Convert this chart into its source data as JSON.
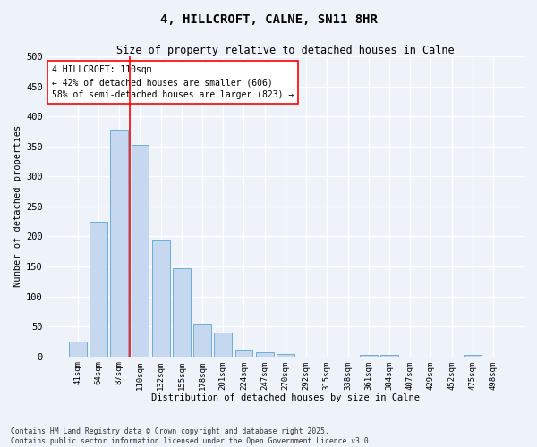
{
  "title": "4, HILLCROFT, CALNE, SN11 8HR",
  "subtitle": "Size of property relative to detached houses in Calne",
  "xlabel": "Distribution of detached houses by size in Calne",
  "ylabel": "Number of detached properties",
  "categories": [
    "41sqm",
    "64sqm",
    "87sqm",
    "110sqm",
    "132sqm",
    "155sqm",
    "178sqm",
    "201sqm",
    "224sqm",
    "247sqm",
    "270sqm",
    "292sqm",
    "315sqm",
    "338sqm",
    "361sqm",
    "384sqm",
    "407sqm",
    "429sqm",
    "452sqm",
    "475sqm",
    "498sqm"
  ],
  "values": [
    25,
    225,
    378,
    352,
    193,
    147,
    55,
    40,
    10,
    7,
    4,
    0,
    0,
    0,
    3,
    3,
    0,
    0,
    0,
    3,
    0
  ],
  "bar_color": "#c5d8f0",
  "bar_edge_color": "#6aaed6",
  "redline_x": 2.5,
  "annotation_title": "4 HILLCROFT: 110sqm",
  "annotation_line1": "← 42% of detached houses are smaller (606)",
  "annotation_line2": "58% of semi-detached houses are larger (823) →",
  "ylim": [
    0,
    500
  ],
  "yticks": [
    0,
    50,
    100,
    150,
    200,
    250,
    300,
    350,
    400,
    450,
    500
  ],
  "background_color": "#eef2f9",
  "grid_color": "#ffffff",
  "footer": "Contains HM Land Registry data © Crown copyright and database right 2025.\nContains public sector information licensed under the Open Government Licence v3.0."
}
